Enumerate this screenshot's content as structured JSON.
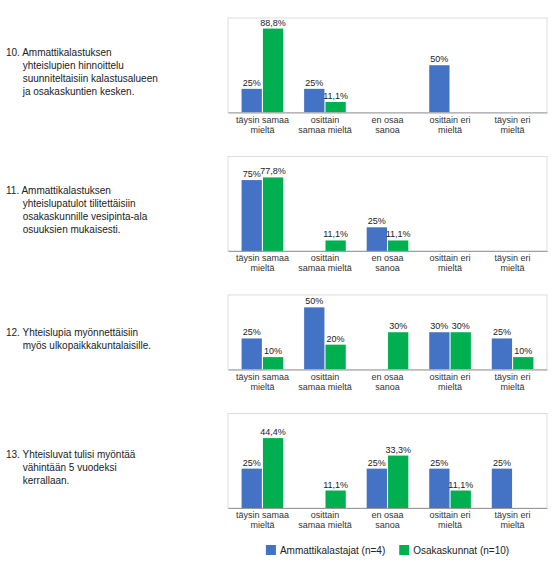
{
  "chart_data": [
    {
      "type": "bar",
      "title": "10. Ammattikalastuksen\n      yhteislupien hinnoittelu\n      suunniteltaisiin kalastusalueen\n      ja osakaskuntien kesken.",
      "categories": [
        "täysin samaa\nmieltä",
        "osittain\nsamaa mieltä",
        "en osaa\nsanoa",
        "osittain eri\nmieltä",
        "täysin eri\nmieltä"
      ],
      "series": [
        {
          "color": "#4472c4",
          "values": [
            25,
            25,
            0,
            50,
            0
          ],
          "value_labels": [
            "25%",
            "25%",
            null,
            "50%",
            null
          ]
        },
        {
          "color": "#00b050",
          "values": [
            88.8,
            11.1,
            0,
            0,
            0
          ],
          "value_labels": [
            "88,8%",
            "11,1%",
            null,
            null,
            null
          ]
        }
      ],
      "ylim": [
        0,
        100
      ],
      "data_labels": true,
      "tick_labels": "x"
    },
    {
      "type": "bar",
      "title": "11. Ammattikalastuksen\n      yhteislupatulot tilitettäisiin\n      osakaskunnille vesipinta-ala\n      osuuksien mukaisesti.",
      "categories": [
        "täysin samaa\nmieltä",
        "osittain\nsamaa mieltä",
        "en osaa\nsanoa",
        "osittain eri\nmieltä",
        "täysin eri\nmieltä"
      ],
      "series": [
        {
          "color": "#4472c4",
          "values": [
            75,
            0,
            25,
            0,
            0
          ],
          "value_labels": [
            "75%",
            null,
            "25%",
            null,
            null
          ]
        },
        {
          "color": "#00b050",
          "values": [
            77.8,
            11.1,
            11.1,
            0,
            0
          ],
          "value_labels": [
            "77,8%",
            "11,1%",
            "11,1%",
            null,
            null
          ]
        }
      ],
      "ylim": [
        0,
        100
      ],
      "data_labels": true,
      "tick_labels": "x"
    },
    {
      "type": "bar",
      "title": "12. Yhteislupia myönnettäisiin\n      myös ulkopaikkakuntalaisille.",
      "categories": [
        "täysin samaa\nmieltä",
        "osittain\nsamaa mieltä",
        "en osaa\nsanoa",
        "osittain eri\nmieltä",
        "täysin eri\nmieltä"
      ],
      "series": [
        {
          "color": "#4472c4",
          "values": [
            25,
            50,
            0,
            30,
            25
          ],
          "value_labels": [
            "25%",
            "50%",
            null,
            "30%",
            "25%"
          ]
        },
        {
          "color": "#00b050",
          "values": [
            10,
            20,
            30,
            30,
            10
          ],
          "value_labels": [
            "10%",
            "20%",
            "30%",
            "30%",
            "10%"
          ]
        }
      ],
      "ylim": [
        0,
        60
      ],
      "data_labels": true,
      "tick_labels": "x"
    },
    {
      "type": "bar",
      "title": "13. Yhteisluvat tulisi myöntää\n      vähintään 5 vuodeksi\n      kerrallaan.",
      "categories": [
        "täysin samaa\nmieltä",
        "osittain\nsamaa mieltä",
        "en osaa\nsanoa",
        "osittain eri\nmieltä",
        "täysin eri\nmieltä"
      ],
      "series": [
        {
          "name": "Ammattikalastajat (n=4)",
          "color": "#4472c4",
          "values": [
            25,
            0,
            25,
            25,
            25
          ],
          "value_labels": [
            "25%",
            null,
            "25%",
            "25%",
            "25%"
          ]
        },
        {
          "name": "Osakaskunnat (n=10)",
          "color": "#00b050",
          "values": [
            44.4,
            11.1,
            33.3,
            11.1,
            0
          ],
          "value_labels": [
            "44,4%",
            "11,1%",
            "33,3%",
            "11,1%",
            null
          ]
        }
      ],
      "ylim": [
        0,
        60
      ],
      "data_labels": true,
      "tick_labels": "x",
      "legend": "bottom"
    }
  ]
}
